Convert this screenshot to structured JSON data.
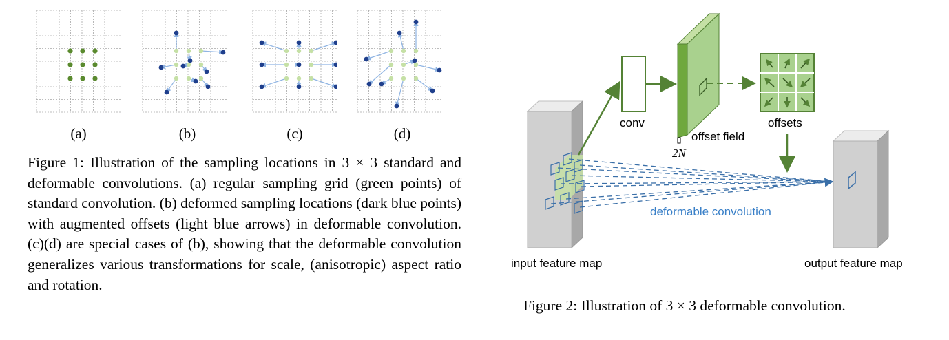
{
  "figure1": {
    "panels": [
      {
        "id": "a",
        "label": "(a)"
      },
      {
        "id": "b",
        "label": "(b)"
      },
      {
        "id": "c",
        "label": "(c)"
      },
      {
        "id": "d",
        "label": "(d)"
      }
    ],
    "caption": "Figure 1: Illustration of the sampling locations in 3 × 3 standard and deformable convolutions. (a) regular sampling grid (green points) of standard convolution. (b) deformed sampling locations (dark blue points) with augmented offsets (light blue arrows) in deformable convolution. (c)(d) are special cases of (b), showing that the deformable convolution generalizes various transformations for scale, (anisotropic) aspect ratio and rotation."
  },
  "figure2": {
    "labels": {
      "conv": "conv",
      "offset_field": "offset field",
      "two_n": "2N",
      "offsets": "offsets",
      "deformable_convolution": "deformable convolution",
      "input_feature_map": "input feature map",
      "output_feature_map": "output feature map"
    },
    "caption": "Figure 2: Illustration of 3 × 3 deformable convolution."
  },
  "colors": {
    "grid": "#a6a6a6",
    "green_point": "#5a8a2e",
    "light_green_point": "#c5e0a5",
    "dark_blue_point": "#1f3f8c",
    "light_blue_arrow": "#8fb4e3",
    "green_box": "#548235",
    "green_fill": "#a9d18e",
    "blue_dash": "#3a6fa8",
    "map_fill": "#d0d0d0"
  }
}
